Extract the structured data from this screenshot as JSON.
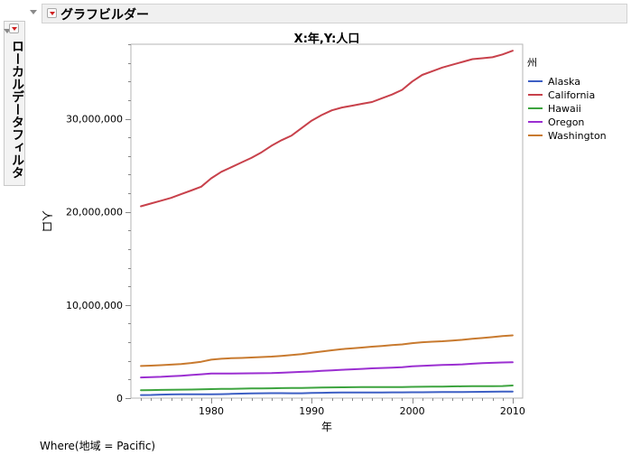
{
  "panel": {
    "title": "グラフビルダー",
    "side_panel_label": "ローカルデータフィルタ",
    "where_text": "Where(地域 = Pacific)"
  },
  "chart_data": {
    "type": "line",
    "title": "X:年,Y:人口",
    "xlabel": "年",
    "ylabel": "人口",
    "xlim": [
      1972,
      2011
    ],
    "ylim": [
      0,
      38000000
    ],
    "x_ticks": [
      1980,
      1990,
      2000,
      2010
    ],
    "y_ticks": [
      0,
      10000000,
      20000000,
      30000000
    ],
    "y_tick_labels": [
      "0",
      "10,000,000",
      "20,000,000",
      "30,000,000"
    ],
    "legend_title": "州",
    "legend_position": "right",
    "x": [
      1973,
      1974,
      1975,
      1976,
      1977,
      1978,
      1979,
      1980,
      1981,
      1982,
      1983,
      1984,
      1985,
      1986,
      1987,
      1988,
      1989,
      1990,
      1991,
      1992,
      1993,
      1994,
      1995,
      1996,
      1997,
      1998,
      1999,
      2000,
      2001,
      2002,
      2003,
      2004,
      2005,
      2006,
      2007,
      2008,
      2009,
      2010
    ],
    "series": [
      {
        "name": "Alaska",
        "color": "#3d5fc4",
        "values": [
          330000,
          340000,
          380000,
          400000,
          410000,
          410000,
          410000,
          420000,
          430000,
          460000,
          480000,
          500000,
          520000,
          530000,
          530000,
          520000,
          520000,
          550000,
          570000,
          590000,
          600000,
          600000,
          600000,
          610000,
          610000,
          620000,
          620000,
          630000,
          630000,
          640000,
          650000,
          660000,
          660000,
          670000,
          680000,
          690000,
          700000,
          710000
        ]
      },
      {
        "name": "California",
        "color": "#c8414b",
        "values": [
          20600000,
          20900000,
          21200000,
          21500000,
          21900000,
          22300000,
          22700000,
          23600000,
          24300000,
          24800000,
          25300000,
          25800000,
          26400000,
          27100000,
          27700000,
          28200000,
          29000000,
          29800000,
          30400000,
          30900000,
          31200000,
          31400000,
          31600000,
          31800000,
          32200000,
          32600000,
          33100000,
          34000000,
          34700000,
          35100000,
          35500000,
          35800000,
          36100000,
          36400000,
          36500000,
          36600000,
          36900000,
          37300000
        ]
      },
      {
        "name": "Hawaii",
        "color": "#3da43f",
        "values": [
          850000,
          860000,
          880000,
          900000,
          910000,
          920000,
          940000,
          965000,
          985000,
          1000000,
          1020000,
          1040000,
          1050000,
          1060000,
          1080000,
          1090000,
          1100000,
          1110000,
          1130000,
          1150000,
          1160000,
          1170000,
          1180000,
          1180000,
          1190000,
          1190000,
          1190000,
          1210000,
          1220000,
          1230000,
          1240000,
          1260000,
          1270000,
          1280000,
          1280000,
          1290000,
          1300000,
          1360000
        ]
      },
      {
        "name": "Oregon",
        "color": "#9b2fd1",
        "values": [
          2220000,
          2260000,
          2290000,
          2350000,
          2400000,
          2480000,
          2560000,
          2640000,
          2650000,
          2650000,
          2660000,
          2670000,
          2680000,
          2690000,
          2720000,
          2770000,
          2820000,
          2860000,
          2930000,
          2980000,
          3040000,
          3090000,
          3140000,
          3200000,
          3240000,
          3280000,
          3320000,
          3420000,
          3470000,
          3520000,
          3560000,
          3590000,
          3630000,
          3690000,
          3750000,
          3790000,
          3830000,
          3850000
        ]
      },
      {
        "name": "Washington",
        "color": "#c87a2f",
        "values": [
          3450000,
          3490000,
          3540000,
          3600000,
          3660000,
          3770000,
          3910000,
          4130000,
          4230000,
          4280000,
          4310000,
          4360000,
          4410000,
          4460000,
          4540000,
          4620000,
          4730000,
          4870000,
          5000000,
          5140000,
          5260000,
          5340000,
          5430000,
          5530000,
          5600000,
          5690000,
          5770000,
          5900000,
          6000000,
          6060000,
          6110000,
          6180000,
          6260000,
          6370000,
          6460000,
          6550000,
          6660000,
          6740000
        ]
      }
    ]
  }
}
